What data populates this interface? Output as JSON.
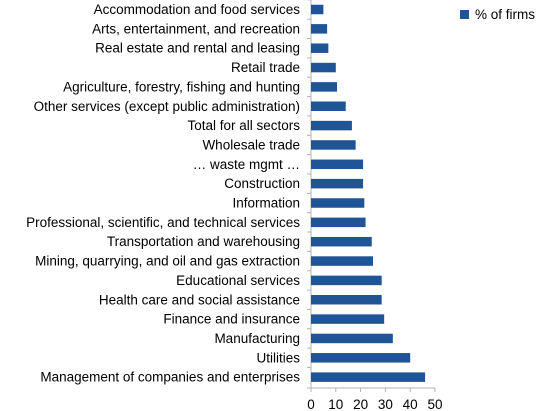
{
  "chart_data": {
    "type": "bar",
    "orientation": "horizontal",
    "categories": [
      "Accommodation and food services",
      "Arts, entertainment, and recreation",
      "Real estate and rental and leasing",
      "Retail trade",
      "Agriculture, forestry, fishing and hunting",
      "Other services (except public administration)",
      "Total for all sectors",
      "Wholesale trade",
      "… waste mgmt …",
      "Construction",
      "Information",
      "Professional, scientific, and technical services",
      "Transportation and warehousing",
      "Mining, quarrying, and oil and gas extraction",
      "Educational services",
      "Health care and social assistance",
      "Finance and insurance",
      "Manufacturing",
      "Utilities",
      "Management of companies and enterprises"
    ],
    "series": [
      {
        "name": "% of firms",
        "color": "#1f5597",
        "values": [
          5,
          6.5,
          7,
          10,
          10.5,
          14,
          16.5,
          18,
          21,
          21,
          21.5,
          22,
          24.5,
          25,
          28.5,
          28.5,
          29.5,
          33,
          40,
          46
        ]
      }
    ],
    "xlim": [
      0,
      50
    ],
    "xticks": [
      "0",
      "10",
      "20",
      "30",
      "40",
      "50"
    ],
    "legend_position": "top-right",
    "grid": false
  }
}
